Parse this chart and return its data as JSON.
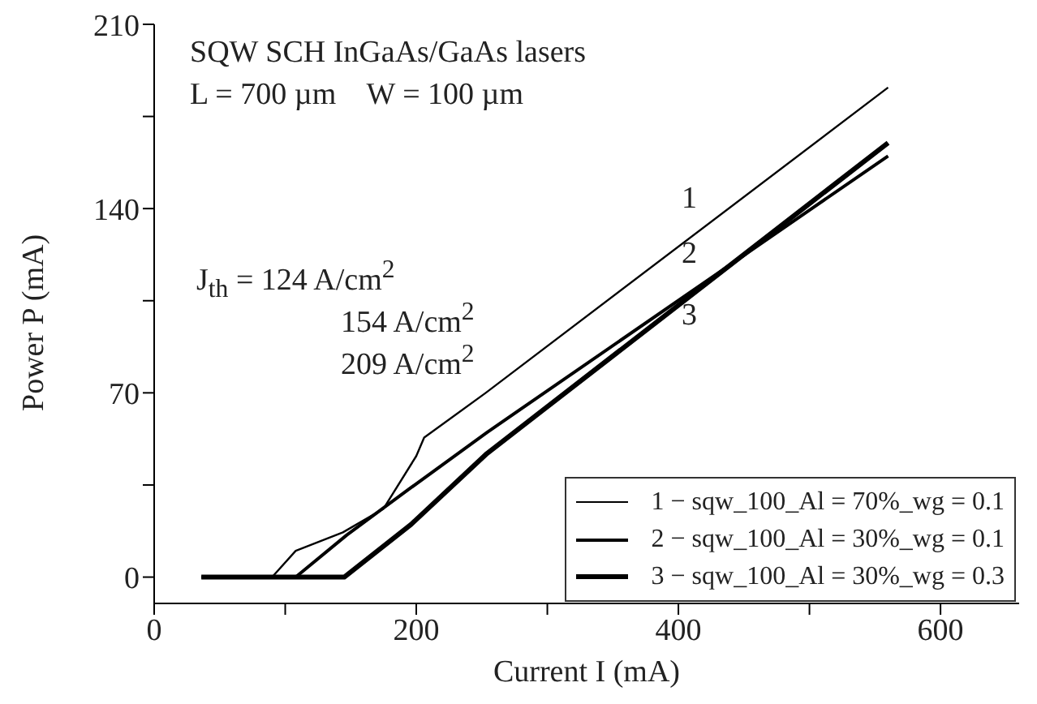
{
  "chart_data": {
    "type": "line",
    "title": "SQW SCH InGaAs/GaAs lasers",
    "xlabel": "Current I (mA)",
    "ylabel": "Power P (mA)",
    "annotations": [
      "L = 700 µm    W = 100 µm",
      "J$_{th}$ = 124 A/cm$^{2}$",
      "154 A/cm$^{2}$",
      "209 A/cm$^{2}$",
      "1",
      "2",
      "3"
    ],
    "series": [
      {
        "name": "1 − sqw_100_Al = 70%_wg = 0.1",
        "color": "#000000",
        "x": [
          36,
          90,
          108,
          144,
          175,
          200,
          206,
          253,
          560
        ],
        "values": [
          0,
          0,
          10,
          17,
          26,
          46,
          53,
          70,
          186
        ]
      },
      {
        "name": "2 − sqw_100_Al = 30%_wg = 0.1",
        "color": "#000000",
        "x": [
          36,
          108,
          147,
          196,
          254,
          560
        ],
        "values": [
          0,
          0,
          16,
          34,
          55,
          160
        ]
      },
      {
        "name": "3 − sqw_100_Al = 30%_wg = 0.3",
        "color": "#000000",
        "x": [
          36,
          145,
          196,
          254,
          560
        ],
        "values": [
          0,
          0,
          20,
          47,
          165
        ]
      }
    ],
    "xlim": [
      0,
      660
    ],
    "xticks": [
      0,
      {
        "value": 100,
        "label": null
      },
      200,
      {
        "value": 300,
        "label": null
      },
      400,
      {
        "value": 500,
        "label": null
      },
      600
    ],
    "ylim": [
      -10,
      210
    ],
    "yticks": [
      0,
      {
        "value": 35,
        "label": null
      },
      70,
      {
        "value": 105,
        "label": null
      },
      140,
      {
        "value": 175,
        "label": null
      },
      210
    ],
    "grid": false,
    "legend": "bottom right",
    "marker": "none",
    "line_style": "solid"
  }
}
